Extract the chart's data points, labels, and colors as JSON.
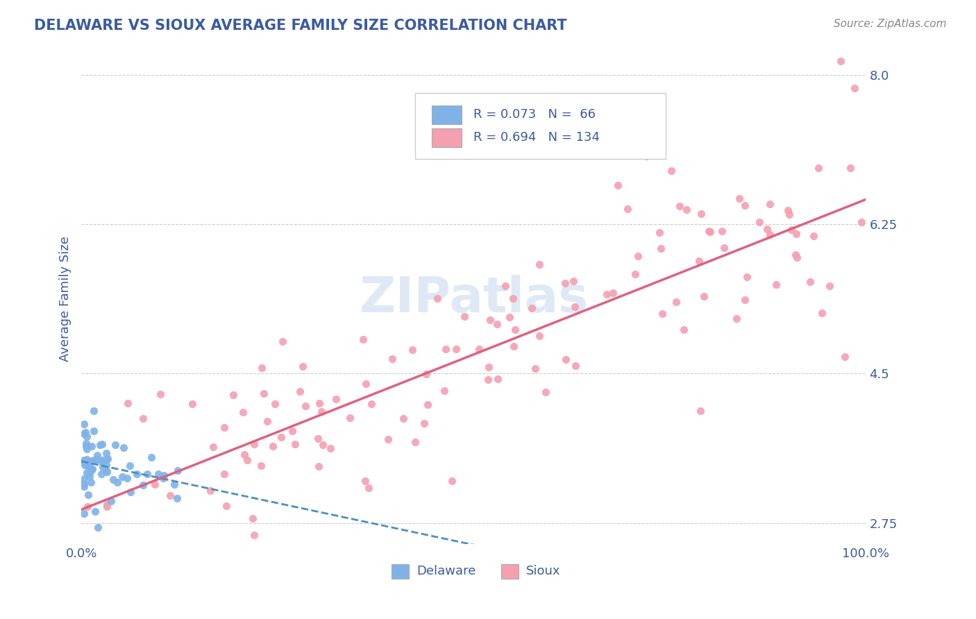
{
  "title": "DELAWARE VS SIOUX AVERAGE FAMILY SIZE CORRELATION CHART",
  "source": "Source: ZipAtlas.com",
  "ylabel": "Average Family Size",
  "xlim": [
    0.0,
    1.0
  ],
  "ylim": [
    2.5,
    8.25
  ],
  "right_yticks": [
    2.75,
    4.5,
    6.25,
    8.0
  ],
  "xticklabels": [
    "0.0%",
    "100.0%"
  ],
  "title_color": "#3a5ba0",
  "source_color": "#888888",
  "label_color": "#3a5ba0",
  "legend_r1": "R = 0.073",
  "legend_n1": "N =  66",
  "legend_r2": "R = 0.694",
  "legend_n2": "N = 134",
  "delaware_color": "#7fb3e8",
  "sioux_color": "#f4a0b0",
  "delaware_line_color": "#4a90c4",
  "sioux_line_color": "#e06080",
  "watermark": "ZIPatlas"
}
